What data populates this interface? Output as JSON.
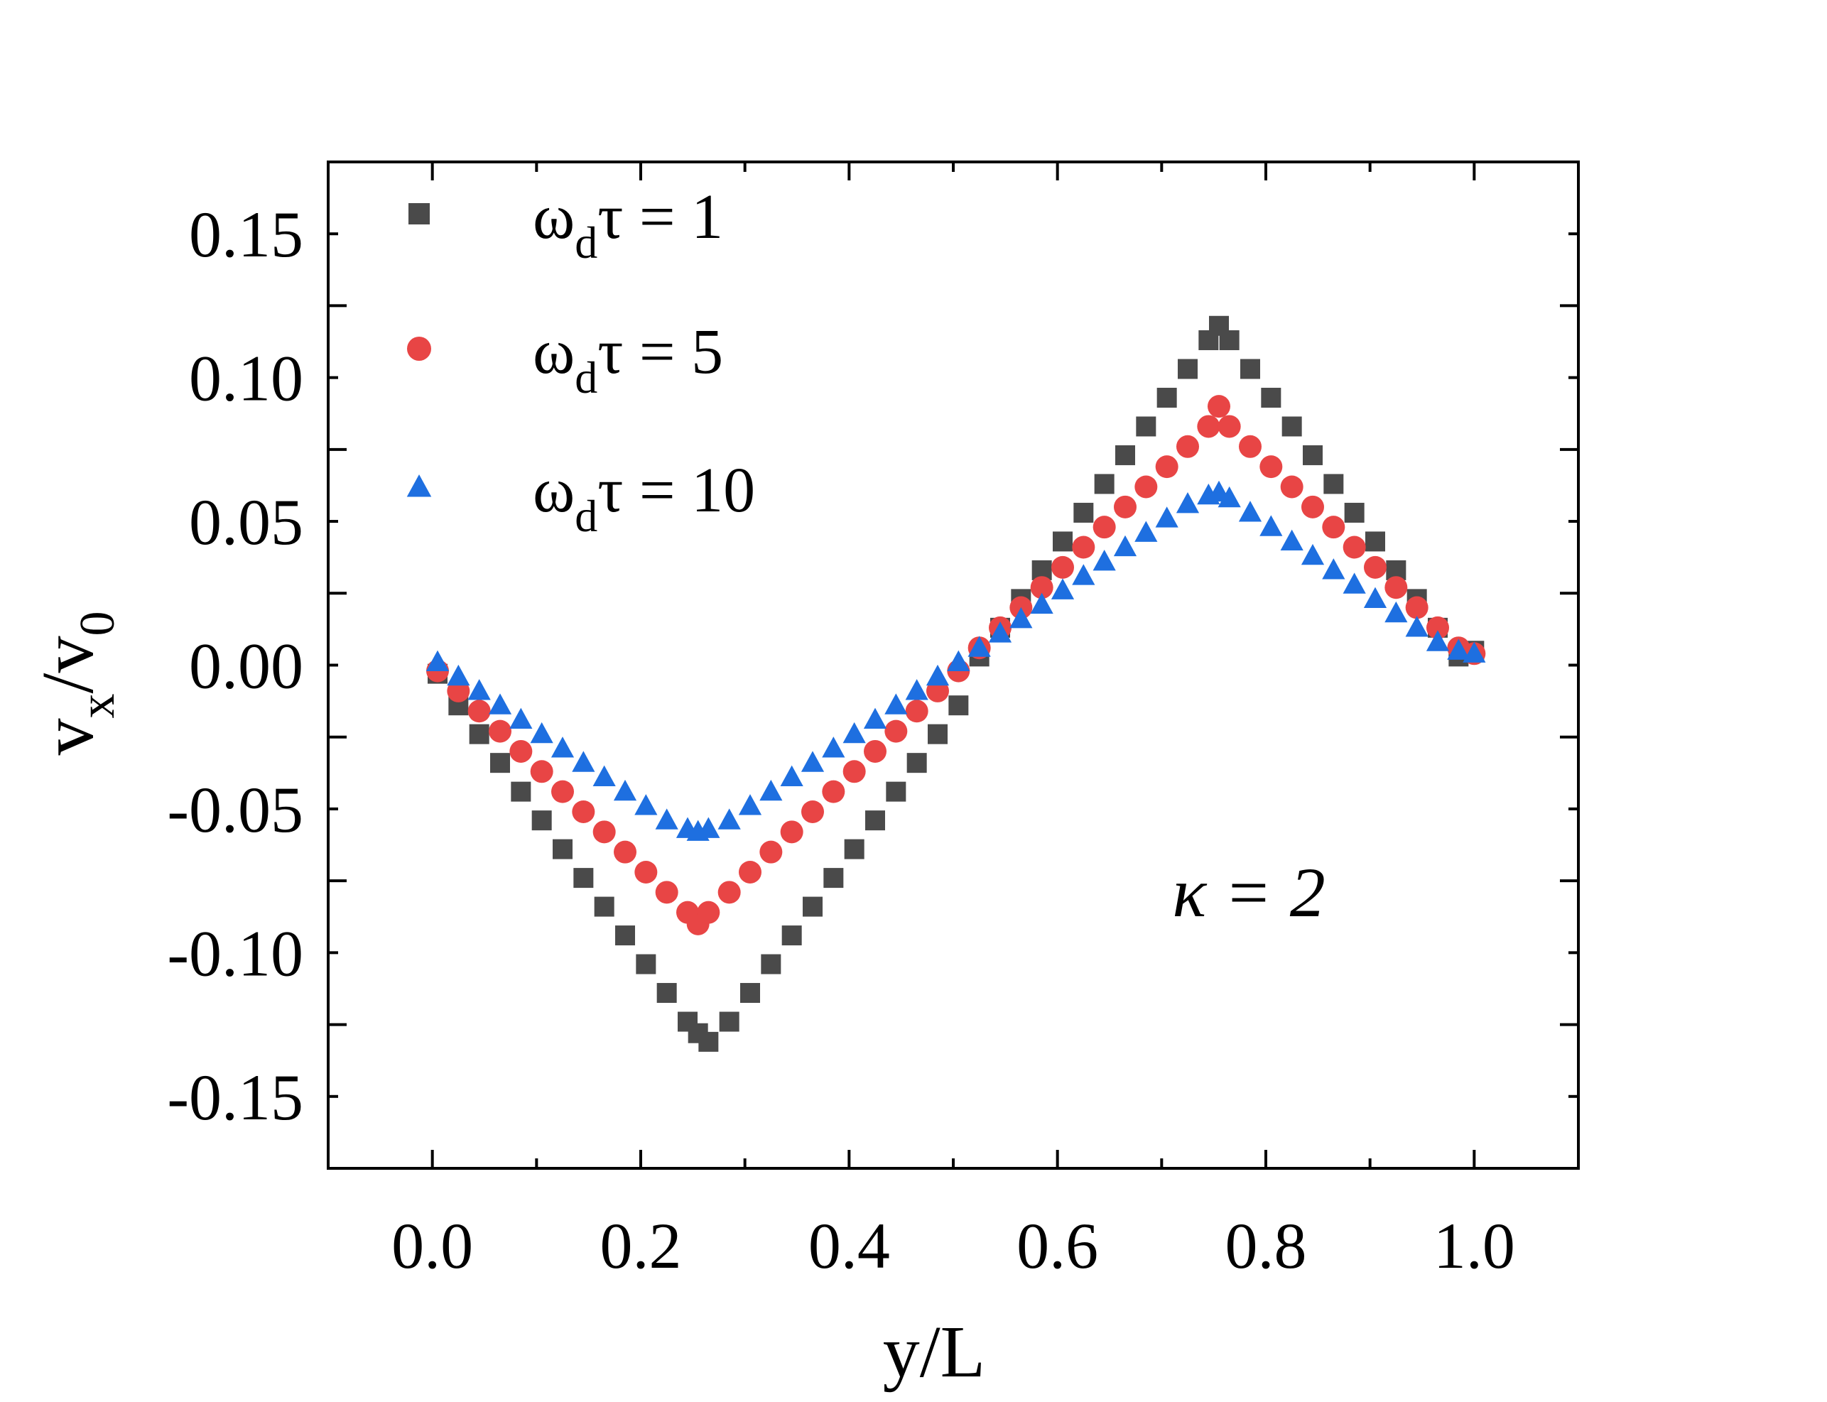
{
  "chart_data": {
    "type": "scatter",
    "title": "",
    "xlabel": "y/L",
    "ylabel_main": "v",
    "ylabel_sub": "x",
    "ylabel_slash": "/v",
    "ylabel_sub2": "0",
    "xlim": [
      -0.1,
      1.1
    ],
    "ylim": [
      -0.175,
      0.175
    ],
    "x_ticks": [
      0.0,
      0.2,
      0.4,
      0.6,
      0.8,
      1.0
    ],
    "x_tick_labels": [
      "0.0",
      "0.2",
      "0.4",
      "0.6",
      "0.8",
      "1.0"
    ],
    "y_ticks": [
      0.15,
      0.1,
      0.05,
      0.0,
      -0.05,
      -0.1,
      -0.15
    ],
    "y_tick_labels": [
      "0.15",
      "0.10",
      "0.05",
      "0.00",
      "-0.05",
      "-0.10",
      "-0.15"
    ],
    "grid": false,
    "legend_position": "top-left",
    "annotation": "κ = 2",
    "x": [
      0.005,
      0.025,
      0.045,
      0.065,
      0.085,
      0.105,
      0.125,
      0.145,
      0.165,
      0.185,
      0.205,
      0.225,
      0.245,
      0.255,
      0.265,
      0.285,
      0.305,
      0.325,
      0.345,
      0.365,
      0.385,
      0.405,
      0.425,
      0.445,
      0.465,
      0.485,
      0.505,
      0.525,
      0.545,
      0.565,
      0.585,
      0.605,
      0.625,
      0.645,
      0.665,
      0.685,
      0.705,
      0.725,
      0.745,
      0.755,
      0.765,
      0.785,
      0.805,
      0.825,
      0.845,
      0.865,
      0.885,
      0.905,
      0.925,
      0.945,
      0.965,
      0.985,
      1.0
    ],
    "series": [
      {
        "name": "ω_d τ = 1",
        "legend_label_omega": "ω",
        "legend_label_sub": "d",
        "legend_label_rest": "τ = 1",
        "color": "#4a4a4a",
        "marker": "square",
        "values": [
          -0.003,
          -0.014,
          -0.024,
          -0.034,
          -0.044,
          -0.054,
          -0.064,
          -0.074,
          -0.084,
          -0.094,
          -0.104,
          -0.114,
          -0.124,
          -0.128,
          -0.131,
          -0.124,
          -0.114,
          -0.104,
          -0.094,
          -0.084,
          -0.074,
          -0.064,
          -0.054,
          -0.044,
          -0.034,
          -0.024,
          -0.014,
          0.003,
          0.013,
          0.023,
          0.033,
          0.043,
          0.053,
          0.063,
          0.073,
          0.083,
          0.093,
          0.103,
          0.113,
          0.118,
          0.113,
          0.103,
          0.093,
          0.083,
          0.073,
          0.063,
          0.053,
          0.043,
          0.033,
          0.023,
          0.013,
          0.003,
          0.005
        ]
      },
      {
        "name": "ω_d τ = 5",
        "legend_label_omega": "ω",
        "legend_label_sub": "d",
        "legend_label_rest": "τ = 5",
        "color": "#e84545",
        "marker": "circle",
        "values": [
          -0.002,
          -0.009,
          -0.016,
          -0.023,
          -0.03,
          -0.037,
          -0.044,
          -0.051,
          -0.058,
          -0.065,
          -0.072,
          -0.079,
          -0.086,
          -0.09,
          -0.086,
          -0.079,
          -0.072,
          -0.065,
          -0.058,
          -0.051,
          -0.044,
          -0.037,
          -0.03,
          -0.023,
          -0.016,
          -0.009,
          -0.002,
          0.006,
          0.013,
          0.02,
          0.027,
          0.034,
          0.041,
          0.048,
          0.055,
          0.062,
          0.069,
          0.076,
          0.083,
          0.09,
          0.083,
          0.076,
          0.069,
          0.062,
          0.055,
          0.048,
          0.041,
          0.034,
          0.027,
          0.02,
          0.013,
          0.006,
          0.004
        ]
      },
      {
        "name": "ω_d τ = 10",
        "legend_label_omega": "ω",
        "legend_label_sub": "d",
        "legend_label_rest": "τ = 10",
        "color": "#1e6fe0",
        "marker": "triangle",
        "values": [
          0.001,
          -0.004,
          -0.009,
          -0.014,
          -0.019,
          -0.024,
          -0.029,
          -0.034,
          -0.039,
          -0.044,
          -0.049,
          -0.054,
          -0.057,
          -0.058,
          -0.057,
          -0.054,
          -0.049,
          -0.044,
          -0.039,
          -0.034,
          -0.029,
          -0.024,
          -0.019,
          -0.014,
          -0.009,
          -0.004,
          0.001,
          0.006,
          0.011,
          0.016,
          0.021,
          0.026,
          0.031,
          0.036,
          0.041,
          0.046,
          0.051,
          0.056,
          0.059,
          0.06,
          0.058,
          0.053,
          0.048,
          0.043,
          0.038,
          0.033,
          0.028,
          0.023,
          0.018,
          0.013,
          0.008,
          0.005,
          0.004
        ]
      }
    ]
  }
}
